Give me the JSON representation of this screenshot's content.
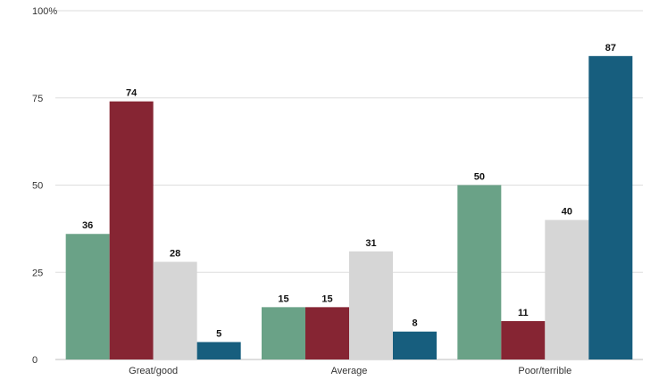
{
  "chart_data": {
    "type": "bar",
    "categories": [
      "Great/good",
      "Average",
      "Poor/terrible"
    ],
    "series": [
      {
        "values": [
          36,
          15,
          50
        ],
        "color": "#6aa287"
      },
      {
        "values": [
          74,
          15,
          11
        ],
        "color": "#862533"
      },
      {
        "values": [
          28,
          31,
          40
        ],
        "color": "#d6d6d6"
      },
      {
        "values": [
          5,
          8,
          87
        ],
        "color": "#175e7e"
      }
    ],
    "y_ticks": [
      {
        "value": 0,
        "label": "0"
      },
      {
        "value": 25,
        "label": "25"
      },
      {
        "value": 50,
        "label": "50"
      },
      {
        "value": 75,
        "label": "75"
      },
      {
        "value": 100,
        "label": "100%"
      }
    ],
    "title": "",
    "xlabel": "",
    "ylabel": "",
    "ylim": [
      0,
      100
    ],
    "grid": true,
    "legend": "none"
  }
}
